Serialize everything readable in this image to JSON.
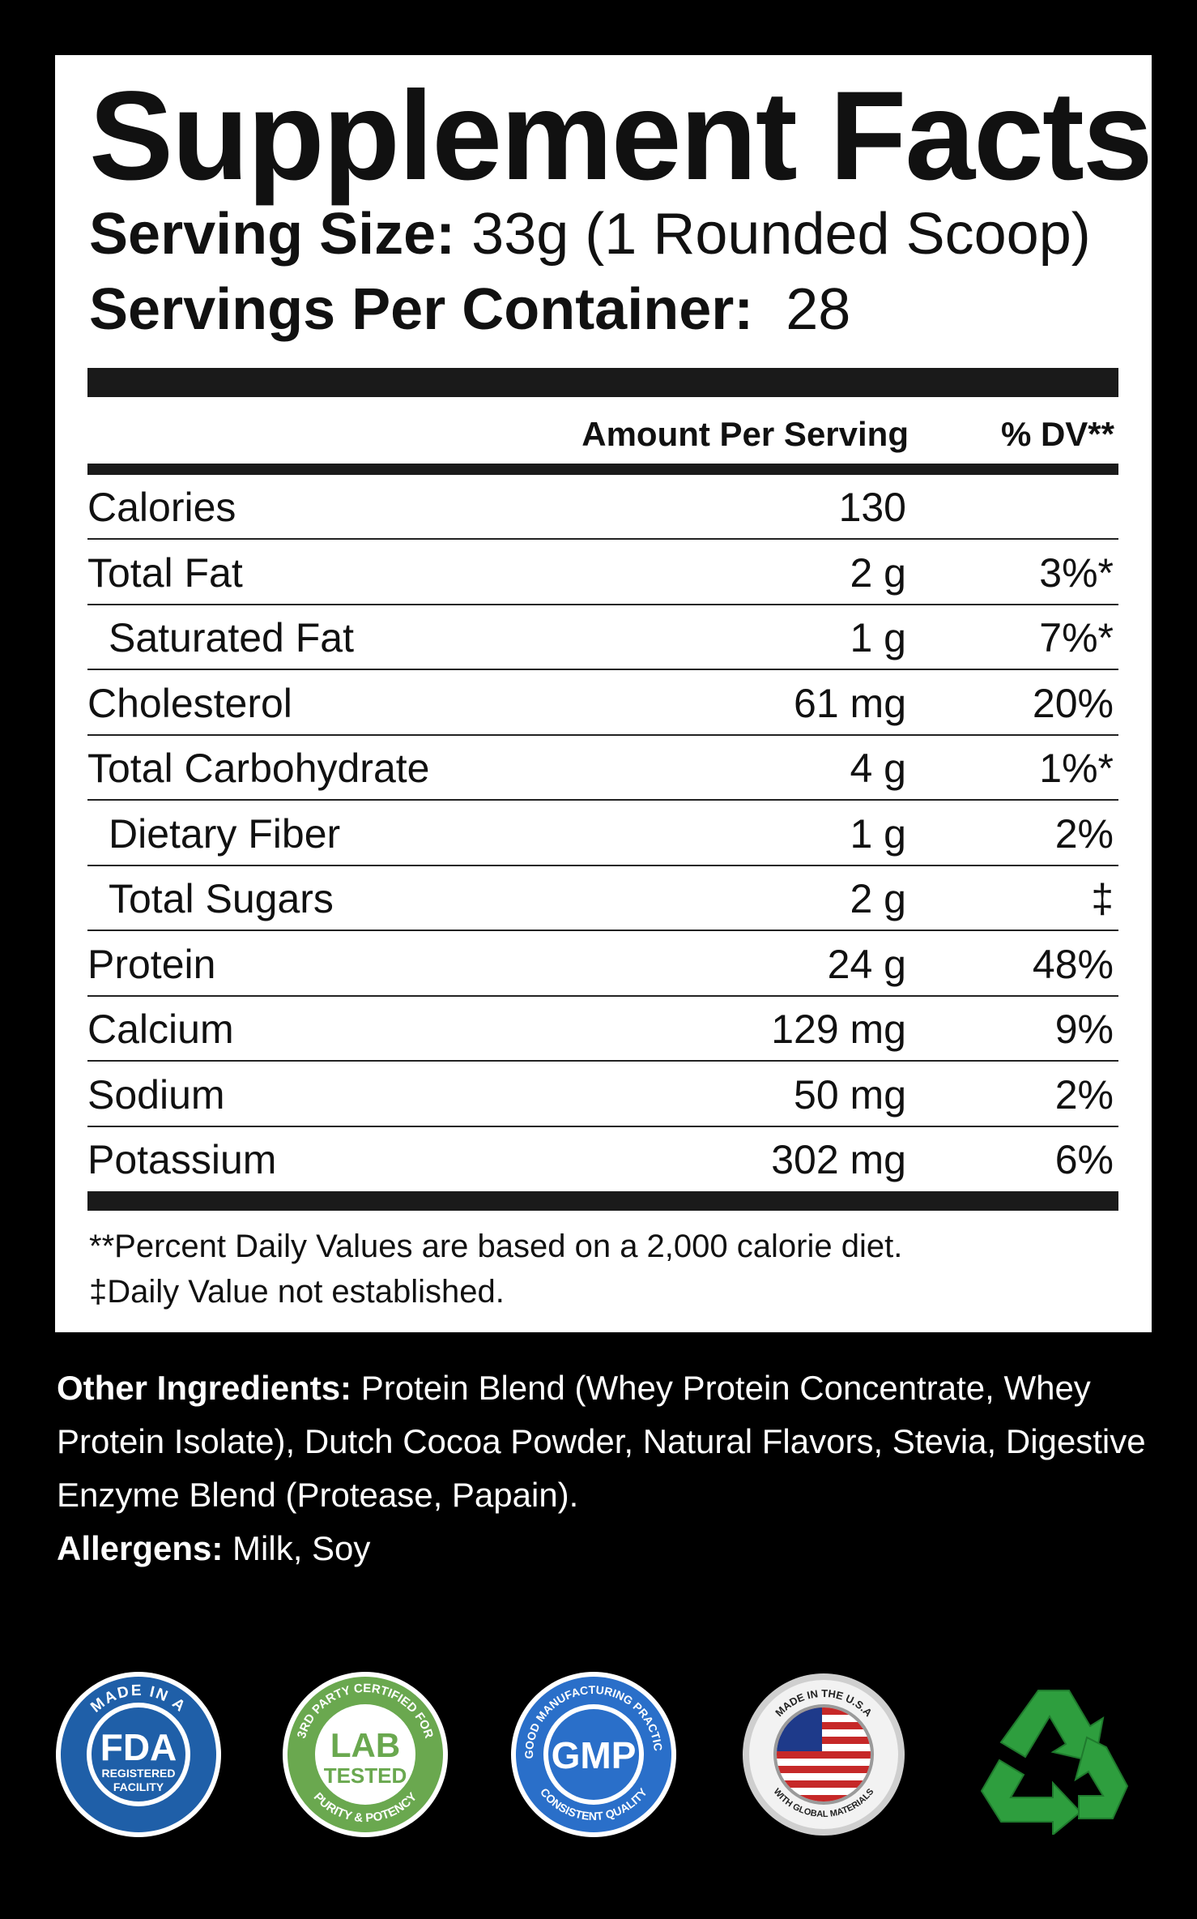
{
  "facts": {
    "title": "Supplement Facts",
    "serving_size_label": "Serving Size:",
    "serving_size_value": "33g (1 Rounded Scoop)",
    "servings_label": "Servings Per Container:",
    "servings_value": "28",
    "col_amount": "Amount Per Serving",
    "col_dv": "% DV**",
    "rows": [
      {
        "name": "Calories",
        "amount": "130",
        "dv": ""
      },
      {
        "name": "Total Fat",
        "amount": "2 g",
        "dv": "3%*"
      },
      {
        "name": "Saturated Fat",
        "amount": "1 g",
        "dv": "7%*"
      },
      {
        "name": "Cholesterol",
        "amount": "61 mg",
        "dv": "20%"
      },
      {
        "name": "Total Carbohydrate",
        "amount": "4 g",
        "dv": "1%*"
      },
      {
        "name": "Dietary Fiber",
        "amount": "1 g",
        "dv": "2%"
      },
      {
        "name": "Total Sugars",
        "amount": "2 g",
        "dv": "‡"
      },
      {
        "name": "Protein",
        "amount": "24 g",
        "dv": "48%"
      },
      {
        "name": "Calcium",
        "amount": "129 mg",
        "dv": "9%"
      },
      {
        "name": "Sodium",
        "amount": "50 mg",
        "dv": "2%"
      },
      {
        "name": "Potassium",
        "amount": "302 mg",
        "dv": "6%"
      }
    ],
    "footnote1": "**Percent Daily Values are based on a 2,000 calorie diet.",
    "footnote2": "‡Daily Value not established."
  },
  "ingredients": {
    "other_label": "Other Ingredients:",
    "other_text": " Protein Blend (Whey Protein Concentrate, Whey Protein Isolate), Dutch Cocoa Powder, Natural Flavors, Stevia, Digestive Enzyme Blend (Protease, Papain).",
    "allergens_label": "Allergens:",
    "allergens_text": " Milk, Soy"
  },
  "badges": {
    "fda": {
      "ring": "MADE IN A",
      "main": "FDA",
      "sub1": "REGISTERED",
      "sub2": "FACILITY",
      "color": "#1f5fa8"
    },
    "lab": {
      "ring_top": "3RD PARTY CERTIFIED FOR",
      "ring_bottom": "PURITY & POTENCY",
      "main1": "LAB",
      "main2": "TESTED",
      "color": "#6aa84f"
    },
    "gmp": {
      "ring_top": "GOOD MANUFACTURING PRACTICE",
      "ring_bottom": "CONSISTENT QUALITY",
      "main": "GMP",
      "color": "#2a6fc9"
    },
    "usa": {
      "ring_top": "MADE IN THE U.S.A",
      "ring_bottom": "WITH GLOBAL MATERIALS"
    },
    "recycle": {
      "icon": "recycle-icon",
      "color": "#2e9e3e"
    }
  }
}
